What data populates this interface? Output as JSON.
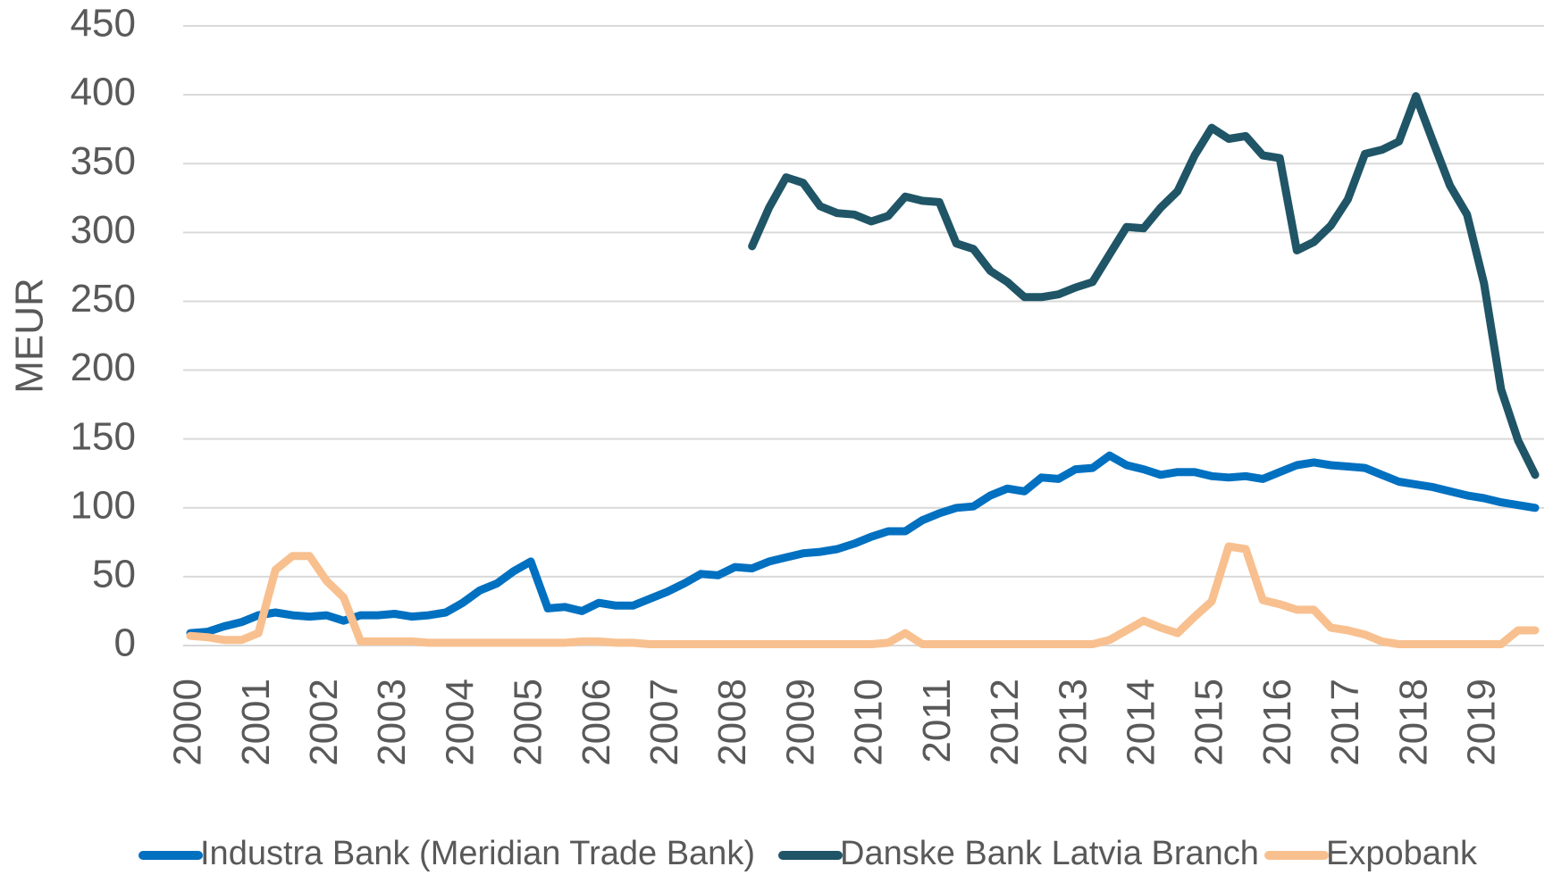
{
  "chart_data": {
    "type": "line",
    "ylabel": "MEUR",
    "categories": [
      "2000",
      null,
      null,
      null,
      "2001",
      null,
      null,
      null,
      "2002",
      null,
      null,
      null,
      "2003",
      null,
      null,
      null,
      "2004",
      null,
      null,
      null,
      "2005",
      null,
      null,
      null,
      "2006",
      null,
      null,
      null,
      "2007",
      null,
      null,
      null,
      "2008",
      null,
      null,
      null,
      "2009",
      null,
      null,
      null,
      "2010",
      null,
      null,
      null,
      "2011",
      null,
      null,
      null,
      "2012",
      null,
      null,
      null,
      "2013",
      null,
      null,
      null,
      "2014",
      null,
      null,
      null,
      "2015",
      null,
      null,
      null,
      "2016",
      null,
      null,
      null,
      "2017",
      null,
      null,
      null,
      "2018",
      null,
      null,
      null,
      "2019",
      null,
      null,
      null
    ],
    "series": [
      {
        "name": "Industra Bank (Meridian Trade Bank)",
        "color": "#0070c0",
        "values": [
          9,
          10,
          14,
          17,
          22,
          24,
          22,
          21,
          22,
          18,
          22,
          22,
          23,
          21,
          22,
          24,
          31,
          40,
          45,
          54,
          61,
          27,
          28,
          25,
          31,
          29,
          29,
          34,
          39,
          45,
          52,
          51,
          57,
          56,
          61,
          64,
          67,
          68,
          70,
          74,
          79,
          83,
          83,
          91,
          96,
          100,
          101,
          109,
          114,
          112,
          122,
          121,
          128,
          129,
          138,
          131,
          128,
          124,
          126,
          126,
          123,
          122,
          123,
          121,
          126,
          131,
          133,
          131,
          130,
          129,
          124,
          119,
          117,
          115,
          112,
          109,
          107,
          104,
          102,
          100
        ]
      },
      {
        "name": "Danske Bank Latvia Branch",
        "color": "#1f5566",
        "values": [
          null,
          null,
          null,
          null,
          null,
          null,
          null,
          null,
          null,
          null,
          null,
          null,
          null,
          null,
          null,
          null,
          null,
          null,
          null,
          null,
          null,
          null,
          null,
          null,
          null,
          null,
          null,
          null,
          null,
          null,
          null,
          null,
          null,
          290,
          318,
          340,
          336,
          319,
          314,
          313,
          308,
          312,
          326,
          323,
          322,
          292,
          288,
          272,
          264,
          253,
          253,
          255,
          260,
          264,
          284,
          304,
          303,
          318,
          330,
          356,
          376,
          368,
          370,
          356,
          354,
          287,
          293,
          305,
          324,
          357,
          360,
          366,
          399,
          366,
          334,
          313,
          263,
          186,
          149,
          124
        ]
      },
      {
        "name": "Expobank",
        "color": "#f8c08f",
        "values": [
          7,
          6,
          4,
          4,
          9,
          55,
          65,
          65,
          47,
          35,
          3,
          3,
          3,
          3,
          2,
          2,
          2,
          2,
          2,
          2,
          2,
          2,
          2,
          3,
          3,
          2,
          2,
          1,
          1,
          1,
          1,
          1,
          1,
          1,
          1,
          1,
          1,
          1,
          1,
          1,
          1,
          2,
          9,
          1,
          1,
          1,
          1,
          1,
          1,
          1,
          1,
          1,
          1,
          1,
          4,
          11,
          18,
          13,
          9,
          21,
          32,
          72,
          70,
          33,
          30,
          26,
          26,
          13,
          11,
          8,
          3,
          1,
          1,
          1,
          1,
          1,
          1,
          1,
          11,
          11
        ]
      }
    ],
    "ylim": [
      0,
      450
    ],
    "yticks": [
      0,
      50,
      100,
      150,
      200,
      250,
      300,
      350,
      400,
      450
    ],
    "grid": true,
    "legend": "bottom"
  }
}
